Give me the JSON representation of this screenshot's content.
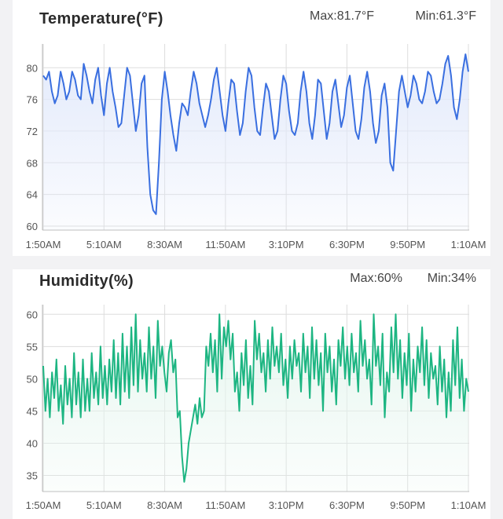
{
  "charts": {
    "temperature": {
      "title": "Temperature(°F)",
      "max_label": "Max:81.7°F",
      "min_label": "Min:61.3°F"
    },
    "humidity": {
      "title": "Humidity(%)",
      "max_label": "Max:60%",
      "min_label": "Min:34%"
    }
  },
  "colors": {
    "temperature_line": "#3a6fe0",
    "temperature_fill": "#e3eafb",
    "humidity_line": "#1db582",
    "humidity_fill": "#e6f6ef",
    "grid": "#dddddd"
  },
  "chart_data": [
    {
      "type": "area",
      "title": "Temperature(°F)",
      "x_tick_labels": [
        "1:50AM",
        "5:10AM",
        "8:30AM",
        "11:50AM",
        "3:10PM",
        "6:30PM",
        "9:50PM",
        "1:10AM"
      ],
      "y_ticks": [
        60,
        64,
        68,
        72,
        76,
        80
      ],
      "ylim": [
        59.5,
        83
      ],
      "grid": true,
      "series": [
        {
          "values": [
            79,
            78.5,
            79.5,
            77,
            75.5,
            76.5,
            79.5,
            78,
            76,
            77,
            79.5,
            78.5,
            76.5,
            76,
            80.5,
            79,
            77,
            75.5,
            78.5,
            80,
            76.5,
            74,
            78,
            80,
            77,
            75,
            72.5,
            73,
            76.5,
            80,
            79,
            75.5,
            72,
            74,
            78,
            79,
            70,
            64,
            62,
            61.5,
            68,
            76,
            79.5,
            77,
            74,
            71.5,
            69.5,
            73,
            75.5,
            75,
            74,
            77,
            79.5,
            78,
            75.5,
            74,
            72.5,
            74,
            76,
            78.5,
            80,
            77,
            74,
            72,
            75.5,
            78.5,
            78,
            74.5,
            71.5,
            73,
            77,
            80,
            79,
            75,
            72,
            71.5,
            75,
            78,
            77,
            74,
            71,
            72,
            76,
            79,
            78,
            74.5,
            72,
            71.5,
            73,
            77,
            79.5,
            77,
            73,
            71,
            74,
            78.5,
            78,
            74.5,
            71,
            73,
            77,
            78.5,
            75.5,
            72.5,
            74,
            77.5,
            79,
            75.5,
            72,
            71,
            73.5,
            77.5,
            79.5,
            77,
            73,
            70.5,
            72,
            76.5,
            78,
            75,
            68,
            67,
            72,
            77,
            79,
            77,
            75,
            76.5,
            79,
            78,
            76,
            75.5,
            77,
            79.5,
            79,
            77,
            75.5,
            76,
            78,
            80.5,
            81.5,
            79,
            75,
            73.5,
            76,
            79.5,
            81.7,
            79.5
          ]
        }
      ]
    },
    {
      "type": "area",
      "title": "Humidity(%)",
      "x_tick_labels": [
        "1:50AM",
        "5:10AM",
        "8:30AM",
        "11:50AM",
        "3:10PM",
        "6:30PM",
        "9:50PM",
        "1:10AM"
      ],
      "y_ticks": [
        35,
        40,
        45,
        50,
        55,
        60
      ],
      "ylim": [
        32.5,
        61.5
      ],
      "grid": true,
      "series": [
        {
          "values": [
            52,
            45,
            50,
            44,
            51,
            47,
            53,
            45,
            49,
            43,
            52,
            46,
            50,
            44,
            54,
            46,
            51,
            44,
            53,
            45,
            50,
            45,
            54,
            47,
            51,
            46,
            55,
            47,
            52,
            46,
            53,
            48,
            56,
            47,
            54,
            46,
            57,
            48,
            55,
            47,
            58,
            49,
            60,
            48,
            56,
            50,
            54,
            48,
            58,
            50,
            55,
            47,
            59,
            52,
            55,
            51,
            48,
            54,
            56,
            51,
            53,
            44,
            45,
            38,
            34,
            36,
            40,
            42,
            44,
            46,
            43,
            47,
            44,
            45,
            55,
            52,
            57,
            51,
            56,
            48,
            60,
            50,
            58,
            55,
            59,
            53,
            57,
            48,
            51,
            45,
            54,
            49,
            56,
            47,
            52,
            46,
            59,
            53,
            57,
            51,
            54,
            48,
            56,
            50,
            58,
            52,
            55,
            51,
            57,
            49,
            53,
            47,
            55,
            50,
            56,
            52,
            54,
            48,
            57,
            51,
            55,
            47,
            58,
            50,
            56,
            49,
            54,
            45,
            57,
            51,
            55,
            48,
            53,
            46,
            56,
            52,
            58,
            50,
            55,
            49,
            57,
            51,
            54,
            48,
            59,
            52,
            56,
            50,
            53,
            46,
            60,
            52,
            55,
            49,
            57,
            44,
            51,
            48,
            58,
            51,
            60,
            50,
            56,
            47,
            54,
            49,
            57,
            45,
            53,
            48,
            55,
            51,
            58,
            49,
            56,
            47,
            54,
            50,
            52,
            46,
            55,
            48,
            53,
            44,
            51,
            45,
            56,
            49,
            58,
            47,
            53,
            45,
            50,
            48
          ]
        }
      ]
    }
  ]
}
